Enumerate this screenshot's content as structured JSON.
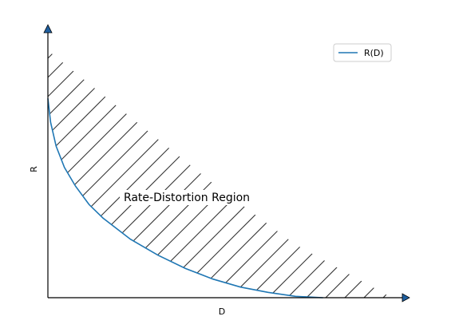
{
  "chart_data": {
    "type": "area",
    "title": "",
    "xlabel": "D",
    "ylabel": "R",
    "xlim": [
      0,
      1.3
    ],
    "ylim": [
      0,
      1.0
    ],
    "grid": false,
    "axes_arrows": true,
    "series": [
      {
        "name": "R(D)",
        "color": "#1f77b4",
        "x": [
          0,
          0.01,
          0.03,
          0.06,
          0.1,
          0.15,
          0.2,
          0.3,
          0.4,
          0.5,
          0.6,
          0.7,
          0.8,
          0.9,
          1.0
        ],
        "y": [
          0.75,
          0.66,
          0.57,
          0.49,
          0.42,
          0.35,
          0.3,
          0.22,
          0.16,
          0.11,
          0.07,
          0.04,
          0.02,
          0.005,
          0
        ]
      }
    ],
    "region": {
      "label": "Rate-Distortion Region",
      "fill_style": "hatch",
      "upper_boundary": {
        "x": [
          0,
          0.3,
          0.6,
          0.9,
          1.25
        ],
        "y": [
          0.93,
          0.68,
          0.43,
          0.2,
          0.0
        ]
      }
    },
    "legend": {
      "position": "top-right",
      "entries": [
        "R(D)"
      ]
    }
  }
}
